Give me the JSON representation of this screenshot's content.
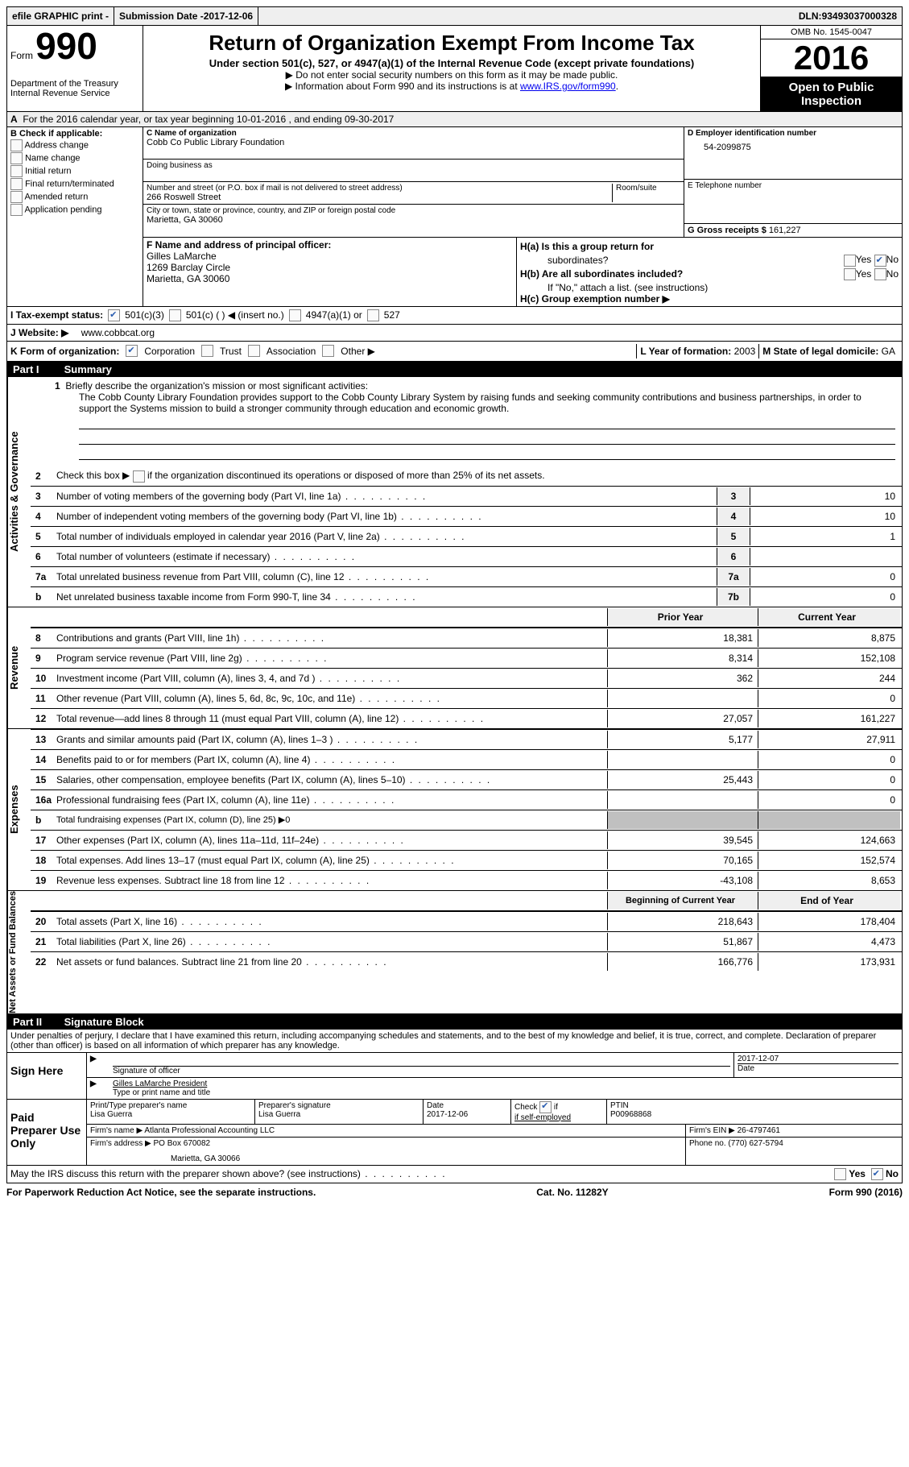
{
  "top_bar": {
    "efile": "efile GRAPHIC print -",
    "submission_label": "Submission Date - ",
    "submission_date": "2017-12-06",
    "dln_label": "DLN: ",
    "dln": "93493037000328"
  },
  "header": {
    "form_word": "Form",
    "form_number": "990",
    "dept1": "Department of the Treasury",
    "dept2": "Internal Revenue Service",
    "title": "Return of Organization Exempt From Income Tax",
    "subtitle": "Under section 501(c), 527, or 4947(a)(1) of the Internal Revenue Code (except private foundations)",
    "note1": "▶ Do not enter social security numbers on this form as it may be made public.",
    "note2_a": "▶ Information about Form 990 and its instructions is at ",
    "note2_link": "www.IRS.gov/form990",
    "omb": "OMB No. 1545-0047",
    "year": "2016",
    "open1": "Open to Public",
    "open2": "Inspection"
  },
  "section_a": {
    "label": "A",
    "text": "For the 2016 calendar year, or tax year beginning 10-01-2016   , and ending 09-30-2017"
  },
  "section_b": {
    "label": "B Check if applicable:",
    "items": [
      "Address change",
      "Name change",
      "Initial return",
      "Final return/terminated",
      "Amended return",
      "Application pending"
    ]
  },
  "section_c": {
    "name_label": "C Name of organization",
    "name": "Cobb Co Public Library Foundation",
    "dba_label": "Doing business as",
    "street_label": "Number and street (or P.O. box if mail is not delivered to street address)",
    "room_label": "Room/suite",
    "street": "266 Roswell Street",
    "city_label": "City or town, state or province, country, and ZIP or foreign postal code",
    "city": "Marietta, GA  30060"
  },
  "section_d": {
    "ein_label": "D Employer identification number",
    "ein": "54-2099875",
    "phone_label": "E Telephone number",
    "gross_label": "G Gross receipts $ ",
    "gross": "161,227"
  },
  "section_f": {
    "label": "F  Name and address of principal officer:",
    "name": "Gilles LaMarche",
    "addr1": "1269 Barclay Circle",
    "addr2": "Marietta, GA  30060"
  },
  "section_h": {
    "ha": "H(a)  Is this a group return for",
    "ha2": "subordinates?",
    "hb": "H(b)  Are all subordinates included?",
    "hb_note": "If \"No,\" attach a list. (see instructions)",
    "hc": "H(c)  Group exemption number ▶"
  },
  "section_i": {
    "label": "I  Tax-exempt status:",
    "o1": "501(c)(3)",
    "o2": "501(c) (   ) ◀ (insert no.)",
    "o3": "4947(a)(1) or",
    "o4": "527"
  },
  "section_j": {
    "label": "J  Website: ▶",
    "value": "www.cobbcat.org"
  },
  "section_k": {
    "label": "K Form of organization:",
    "o1": "Corporation",
    "o2": "Trust",
    "o3": "Association",
    "o4": "Other ▶"
  },
  "section_lm": {
    "l_label": "L Year of formation: ",
    "l": "2003",
    "m_label": "M State of legal domicile: ",
    "m": "GA"
  },
  "part1": {
    "header": "Part I",
    "title": "Summary",
    "line1_label": "1",
    "line1_text": "Briefly describe the organization's mission or most significant activities:",
    "mission": "The Cobb County Library Foundation provides support to the Cobb County Library System by raising funds and seeking community contributions and business partnerships, in order to support the Systems mission to build a stronger community through education and economic growth.",
    "line2": "Check this box ▶",
    "line2b": "if the organization discontinued its operations or disposed of more than 25% of its net assets.",
    "vert_activities": "Activities & Governance",
    "vert_revenue": "Revenue",
    "vert_expenses": "Expenses",
    "vert_net": "Net Assets or Fund Balances",
    "lines_single": [
      {
        "n": "3",
        "t": "Number of voting members of the governing body (Part VI, line 1a)",
        "box": "3",
        "v": "10"
      },
      {
        "n": "4",
        "t": "Number of independent voting members of the governing body (Part VI, line 1b)",
        "box": "4",
        "v": "10"
      },
      {
        "n": "5",
        "t": "Total number of individuals employed in calendar year 2016 (Part V, line 2a)",
        "box": "5",
        "v": "1"
      },
      {
        "n": "6",
        "t": "Total number of volunteers (estimate if necessary)",
        "box": "6",
        "v": ""
      },
      {
        "n": "7a",
        "t": "Total unrelated business revenue from Part VIII, column (C), line 12",
        "box": "7a",
        "v": "0"
      },
      {
        "n": "b",
        "t": "Net unrelated business taxable income from Form 990-T, line 34",
        "box": "7b",
        "v": "0"
      }
    ],
    "col_prior": "Prior Year",
    "col_current": "Current Year",
    "lines_revenue": [
      {
        "n": "8",
        "t": "Contributions and grants (Part VIII, line 1h)",
        "p": "18,381",
        "c": "8,875"
      },
      {
        "n": "9",
        "t": "Program service revenue (Part VIII, line 2g)",
        "p": "8,314",
        "c": "152,108"
      },
      {
        "n": "10",
        "t": "Investment income (Part VIII, column (A), lines 3, 4, and 7d )",
        "p": "362",
        "c": "244"
      },
      {
        "n": "11",
        "t": "Other revenue (Part VIII, column (A), lines 5, 6d, 8c, 9c, 10c, and 11e)",
        "p": "",
        "c": "0"
      },
      {
        "n": "12",
        "t": "Total revenue—add lines 8 through 11 (must equal Part VIII, column (A), line 12)",
        "p": "27,057",
        "c": "161,227"
      }
    ],
    "lines_expenses": [
      {
        "n": "13",
        "t": "Grants and similar amounts paid (Part IX, column (A), lines 1–3 )",
        "p": "5,177",
        "c": "27,911"
      },
      {
        "n": "14",
        "t": "Benefits paid to or for members (Part IX, column (A), line 4)",
        "p": "",
        "c": "0"
      },
      {
        "n": "15",
        "t": "Salaries, other compensation, employee benefits (Part IX, column (A), lines 5–10)",
        "p": "25,443",
        "c": "0"
      },
      {
        "n": "16a",
        "t": "Professional fundraising fees (Part IX, column (A), line 11e)",
        "p": "",
        "c": "0"
      }
    ],
    "line16b": "Total fundraising expenses (Part IX, column (D), line 25) ▶0",
    "lines_expenses2": [
      {
        "n": "17",
        "t": "Other expenses (Part IX, column (A), lines 11a–11d, 11f–24e)",
        "p": "39,545",
        "c": "124,663"
      },
      {
        "n": "18",
        "t": "Total expenses. Add lines 13–17 (must equal Part IX, column (A), line 25)",
        "p": "70,165",
        "c": "152,574"
      },
      {
        "n": "19",
        "t": "Revenue less expenses. Subtract line 18 from line 12",
        "p": "-43,108",
        "c": "8,653"
      }
    ],
    "col_begin": "Beginning of Current Year",
    "col_end": "End of Year",
    "lines_net": [
      {
        "n": "20",
        "t": "Total assets (Part X, line 16)",
        "p": "218,643",
        "c": "178,404"
      },
      {
        "n": "21",
        "t": "Total liabilities (Part X, line 26)",
        "p": "51,867",
        "c": "4,473"
      },
      {
        "n": "22",
        "t": "Net assets or fund balances. Subtract line 21 from line 20",
        "p": "166,776",
        "c": "173,931"
      }
    ]
  },
  "part2": {
    "header": "Part II",
    "title": "Signature Block",
    "declaration": "Under penalties of perjury, I declare that I have examined this return, including accompanying schedules and statements, and to the best of my knowledge and belief, it is true, correct, and complete. Declaration of preparer (other than officer) is based on all information of which preparer has any knowledge.",
    "sign_here": "Sign Here",
    "sig_officer_label": "Signature of officer",
    "sig_date": "2017-12-07",
    "sig_date_label": "Date",
    "officer_name": "Gilles LaMarche President",
    "officer_name_label": "Type or print name and title",
    "paid_label": "Paid Preparer Use Only",
    "prep_name_label": "Print/Type preparer's name",
    "prep_name": "Lisa Guerra",
    "prep_sig_label": "Preparer's signature",
    "prep_sig": "Lisa Guerra",
    "prep_date_label": "Date",
    "prep_date": "2017-12-06",
    "check_label": "Check",
    "self_emp": "if self-employed",
    "ptin_label": "PTIN",
    "ptin": "P00968868",
    "firm_name_label": "Firm's name     ▶ ",
    "firm_name": "Atlanta Professional Accounting LLC",
    "firm_ein_label": "Firm's EIN ▶ ",
    "firm_ein": "26-4797461",
    "firm_addr_label": "Firm's address ▶ ",
    "firm_addr1": "PO Box 670082",
    "firm_addr2": "Marietta, GA  30066",
    "phone_label": "Phone no. ",
    "phone": "(770) 627-5794",
    "discuss": "May the IRS discuss this return with the preparer shown above? (see instructions)"
  },
  "footer": {
    "left": "For Paperwork Reduction Act Notice, see the separate instructions.",
    "center": "Cat. No. 11282Y",
    "right": "Form 990 (2016)"
  }
}
